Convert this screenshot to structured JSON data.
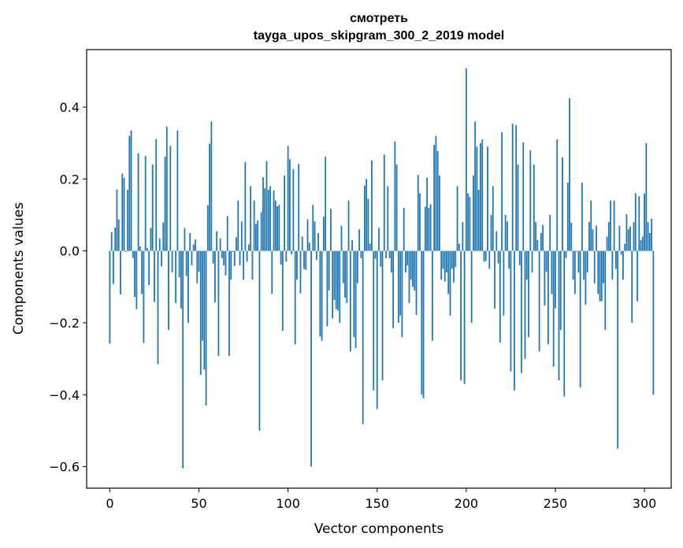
{
  "chart_data": {
    "type": "bar",
    "title": [
      "смотреть",
      "tayga_upos_skipgram_300_2_2019 model"
    ],
    "xlabel": "Vector components",
    "ylabel": "Components values",
    "xlim": [
      -13,
      315
    ],
    "ylim": [
      -0.66,
      0.56
    ],
    "xticks": [
      0,
      50,
      100,
      150,
      200,
      250,
      300
    ],
    "yticks": [
      -0.6,
      -0.4,
      -0.2,
      0.0,
      0.2,
      0.4
    ],
    "ytick_labels": [
      "−0.6",
      "−0.4",
      "−0.2",
      "0.0",
      "0.2",
      "0.4"
    ],
    "bar_color": "#1f77b4",
    "values": [
      -0.258,
      0.052,
      -0.092,
      0.065,
      0.171,
      0.088,
      -0.121,
      0.215,
      0.203,
      -0.003,
      0.17,
      0.32,
      0.335,
      -0.02,
      -0.128,
      -0.162,
      0.272,
      0.013,
      -0.12,
      -0.256,
      0.264,
      0.008,
      -0.095,
      0.064,
      0.24,
      -0.142,
      0.311,
      -0.315,
      0.035,
      -0.043,
      0.079,
      0.262,
      0.346,
      -0.22,
      0.292,
      -0.06,
      0.002,
      -0.145,
      0.335,
      -0.074,
      -0.16,
      -0.605,
      0.063,
      -0.07,
      -0.2,
      0.05,
      -0.04,
      0.018,
      0.032,
      -0.09,
      -0.058,
      -0.345,
      -0.25,
      -0.33,
      -0.43,
      0.127,
      0.298,
      0.36,
      -0.035,
      -0.143,
      0.055,
      -0.292,
      0.035,
      -0.02,
      -0.04,
      -0.068,
      0.097,
      -0.292,
      -0.08,
      -0.003,
      -0.042,
      0.038,
      0.14,
      -0.04,
      0.082,
      -0.08,
      0.247,
      -0.03,
      0.018,
      0.18,
      -0.08,
      0.14,
      0.075,
      0.085,
      -0.5,
      0.108,
      0.205,
      0.174,
      0.25,
      0.17,
      0.18,
      -0.12,
      0.168,
      0.14,
      0.124,
      0.128,
      -0.038,
      -0.222,
      0.21,
      -0.03,
      0.292,
      0.255,
      -0.01,
      0.228,
      -0.26,
      -0.08,
      0.242,
      -0.118,
      0.04,
      -0.05,
      -0.053,
      0.088,
      0.023,
      -0.6,
      0.128,
      0.082,
      -0.025,
      0.05,
      -0.238,
      -0.25,
      0.095,
      0.262,
      -0.21,
      -0.11,
      0.117,
      -0.188,
      -0.136,
      -0.162,
      -0.166,
      -0.2,
      0.07,
      -0.09,
      -0.13,
      -0.145,
      0.14,
      -0.28,
      0.03,
      -0.24,
      -0.27,
      -0.09,
      0.06,
      -0.02,
      -0.482,
      0.182,
      0.2,
      0.145,
      0.02,
      0.252,
      -0.388,
      -0.022,
      -0.44,
      0.064,
      -0.044,
      -0.36,
      0.268,
      -0.02,
      0.18,
      -0.02,
      -0.06,
      -0.215,
      0.305,
      0.24,
      -0.2,
      -0.18,
      -0.24,
      0.12,
      -0.06,
      -0.04,
      -0.145,
      -0.08,
      -0.1,
      -0.11,
      -0.178,
      0.211,
      0.16,
      -0.4,
      -0.41,
      0.123,
      0.204,
      0.12,
      0.13,
      -0.25,
      0.295,
      0.32,
      0.278,
      0.21,
      -0.08,
      -0.05,
      -0.085,
      -0.06,
      -0.12,
      -0.18,
      -0.05,
      -0.088,
      -0.045,
      0.18,
      0.02,
      -0.36,
      0.08,
      -0.37,
      0.508,
      0.16,
      0.15,
      -0.2,
      0.21,
      0.36,
      0.29,
      0.17,
      0.3,
      0.31,
      -0.03,
      -0.028,
      0.29,
      -0.05,
      0.1,
      0.18,
      -0.16,
      0.055,
      -0.035,
      -0.255,
      0.33,
      -0.18,
      0.1,
      0.082,
      -0.05,
      -0.335,
      0.354,
      -0.388,
      0.35,
      0.24,
      -0.04,
      -0.34,
      0.302,
      -0.3,
      -0.08,
      -0.24,
      0.28,
      -0.06,
      0.24,
      0.08,
      0.03,
      -0.28,
      0.05,
      0.072,
      -0.152,
      -0.058,
      -0.26,
      0.1,
      -0.12,
      -0.322,
      -0.16,
      0.31,
      -0.36,
      -0.22,
      0.26,
      -0.405,
      -0.02,
      0.19,
      0.425,
      0.078,
      -0.08,
      -0.12,
      -0.002,
      -0.06,
      -0.38,
      0.19,
      -0.08,
      -0.15,
      -0.06,
      0.08,
      0.14,
      0.06,
      -0.09,
      0.07,
      -0.12,
      -0.14,
      -0.14,
      -0.09,
      -0.22,
      0.04,
      0.08,
      0.14,
      -0.08,
      0.14,
      -0.05,
      -0.55,
      0.07,
      -0.01,
      -0.08,
      0.02,
      0.102,
      0.06,
      0.068,
      -0.2,
      0.08,
      0.16,
      -0.14,
      0.152,
      0.03,
      0.04,
      0.16,
      0.3,
      0.08,
      0.05,
      0.09,
      -0.4
    ]
  }
}
